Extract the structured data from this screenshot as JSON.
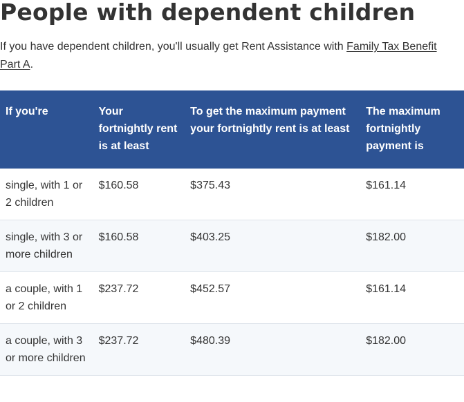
{
  "page": {
    "title": "People with dependent children",
    "intro_text": "If you have dependent children, you'll usually get Rent Assistance with ",
    "intro_link": "Family Tax Benefit Part A",
    "intro_end": "."
  },
  "table": {
    "headers": [
      "If you're",
      "Your fortnightly rent is at least",
      "To get the maximum payment your fortnightly rent is at least",
      "The maximum fortnightly payment is"
    ],
    "rows": [
      [
        "single, with 1 or 2 children",
        "$160.58",
        "$375.43",
        "$161.14"
      ],
      [
        "single, with 3 or more children",
        "$160.58",
        "$403.25",
        "$182.00"
      ],
      [
        "a couple, with 1 or 2 children",
        "$237.72",
        "$452.57",
        "$161.14"
      ],
      [
        "a couple, with 3 or more children",
        "$237.72",
        "$480.39",
        "$182.00"
      ]
    ]
  },
  "colors": {
    "header_bg": "#2d5394",
    "header_text": "#ffffff",
    "row_alt_bg": "#f5f8fb",
    "body_text": "#333333"
  }
}
